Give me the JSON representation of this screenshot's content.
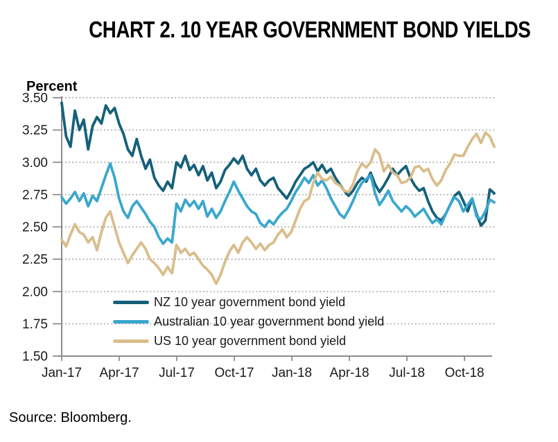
{
  "chart_data": {
    "type": "line",
    "title": "CHART 2. 10 YEAR GOVERNMENT BOND YIELDS",
    "ylabel": "Percent",
    "xlabel": "",
    "source": "Source: Bloomberg.",
    "ylim": [
      1.5,
      3.5
    ],
    "x_total_months": 22.55,
    "sample_interval": "weekly",
    "grid": "horizontal dotted",
    "legend_position": "inside lower-left",
    "colors": {
      "axis": "#8c8c8c",
      "grid": "#a3a3a3",
      "tick_text": "#1a1a1a"
    },
    "y_ticks": [
      {
        "value": 3.5,
        "label": "3.50"
      },
      {
        "value": 3.25,
        "label": "3.25"
      },
      {
        "value": 3.0,
        "label": "3.00"
      },
      {
        "value": 2.75,
        "label": "2.75"
      },
      {
        "value": 2.5,
        "label": "2.50"
      },
      {
        "value": 2.25,
        "label": "2.25"
      },
      {
        "value": 2.0,
        "label": "2.00"
      },
      {
        "value": 1.75,
        "label": "1.75"
      },
      {
        "value": 1.5,
        "label": "1.50"
      }
    ],
    "x_ticks": [
      {
        "month": 0,
        "label": "Jan-17"
      },
      {
        "month": 3,
        "label": "Apr-17"
      },
      {
        "month": 6,
        "label": "Jul-17"
      },
      {
        "month": 9,
        "label": "Oct-17"
      },
      {
        "month": 12,
        "label": "Jan-18"
      },
      {
        "month": 15,
        "label": "Apr-18"
      },
      {
        "month": 18,
        "label": "Jul-18"
      },
      {
        "month": 21,
        "label": "Oct-18"
      }
    ],
    "series": [
      {
        "id": "nz",
        "name": "NZ 10 year government bond yield",
        "color": "#15607a",
        "values": [
          3.46,
          3.2,
          3.12,
          3.4,
          3.25,
          3.33,
          3.1,
          3.28,
          3.35,
          3.3,
          3.44,
          3.38,
          3.42,
          3.3,
          3.22,
          3.1,
          3.05,
          3.18,
          3.05,
          2.95,
          3.02,
          2.88,
          2.82,
          2.78,
          2.85,
          2.8,
          3.0,
          2.96,
          3.05,
          2.94,
          2.98,
          2.9,
          2.97,
          2.86,
          2.92,
          2.8,
          2.85,
          2.94,
          2.98,
          3.03,
          2.99,
          3.05,
          2.95,
          2.9,
          2.95,
          2.86,
          2.82,
          2.86,
          2.88,
          2.8,
          2.76,
          2.72,
          2.78,
          2.85,
          2.9,
          2.95,
          2.97,
          3.0,
          2.93,
          2.98,
          2.92,
          2.95,
          2.88,
          2.83,
          2.78,
          2.74,
          2.78,
          2.84,
          2.88,
          2.85,
          2.92,
          2.83,
          2.77,
          2.82,
          2.88,
          2.95,
          2.9,
          2.94,
          2.97,
          2.88,
          2.82,
          2.78,
          2.8,
          2.7,
          2.62,
          2.57,
          2.55,
          2.6,
          2.67,
          2.74,
          2.77,
          2.7,
          2.62,
          2.72,
          2.6,
          2.51,
          2.55,
          2.79,
          2.76
        ]
      },
      {
        "id": "au",
        "name": "Australian 10 year government bond yield",
        "color": "#3aa7cd",
        "values": [
          2.73,
          2.68,
          2.72,
          2.77,
          2.7,
          2.76,
          2.66,
          2.74,
          2.7,
          2.8,
          2.9,
          2.99,
          2.88,
          2.72,
          2.62,
          2.57,
          2.66,
          2.7,
          2.65,
          2.6,
          2.54,
          2.5,
          2.42,
          2.37,
          2.41,
          2.38,
          2.68,
          2.62,
          2.71,
          2.66,
          2.7,
          2.64,
          2.7,
          2.58,
          2.64,
          2.57,
          2.62,
          2.7,
          2.77,
          2.85,
          2.78,
          2.72,
          2.66,
          2.62,
          2.6,
          2.53,
          2.5,
          2.55,
          2.52,
          2.57,
          2.61,
          2.64,
          2.7,
          2.77,
          2.82,
          2.88,
          2.84,
          2.9,
          2.82,
          2.86,
          2.8,
          2.72,
          2.66,
          2.6,
          2.57,
          2.63,
          2.7,
          2.78,
          2.84,
          2.87,
          2.9,
          2.76,
          2.67,
          2.72,
          2.78,
          2.7,
          2.66,
          2.62,
          2.66,
          2.63,
          2.58,
          2.61,
          2.64,
          2.58,
          2.53,
          2.56,
          2.52,
          2.6,
          2.67,
          2.73,
          2.7,
          2.62,
          2.67,
          2.72,
          2.58,
          2.56,
          2.62,
          2.71,
          2.69
        ]
      },
      {
        "id": "us",
        "name": "US 10 year government bond yield",
        "color": "#d9bd8b",
        "values": [
          2.4,
          2.35,
          2.44,
          2.52,
          2.46,
          2.44,
          2.38,
          2.42,
          2.32,
          2.46,
          2.57,
          2.62,
          2.5,
          2.38,
          2.3,
          2.22,
          2.28,
          2.33,
          2.38,
          2.33,
          2.25,
          2.22,
          2.18,
          2.13,
          2.19,
          2.14,
          2.36,
          2.3,
          2.33,
          2.28,
          2.3,
          2.25,
          2.2,
          2.17,
          2.13,
          2.06,
          2.13,
          2.23,
          2.31,
          2.36,
          2.3,
          2.38,
          2.42,
          2.38,
          2.33,
          2.37,
          2.32,
          2.36,
          2.38,
          2.44,
          2.48,
          2.42,
          2.46,
          2.55,
          2.64,
          2.7,
          2.72,
          2.84,
          2.92,
          2.87,
          2.86,
          2.89,
          2.84,
          2.82,
          2.78,
          2.77,
          2.83,
          2.93,
          2.99,
          2.96,
          3.0,
          3.1,
          3.06,
          2.93,
          2.98,
          2.92,
          2.9,
          2.84,
          2.85,
          2.88,
          2.96,
          2.97,
          2.93,
          2.95,
          2.87,
          2.82,
          2.86,
          2.94,
          2.99,
          3.06,
          3.05,
          3.05,
          3.12,
          3.18,
          3.22,
          3.15,
          3.23,
          3.2,
          3.12
        ]
      }
    ]
  }
}
